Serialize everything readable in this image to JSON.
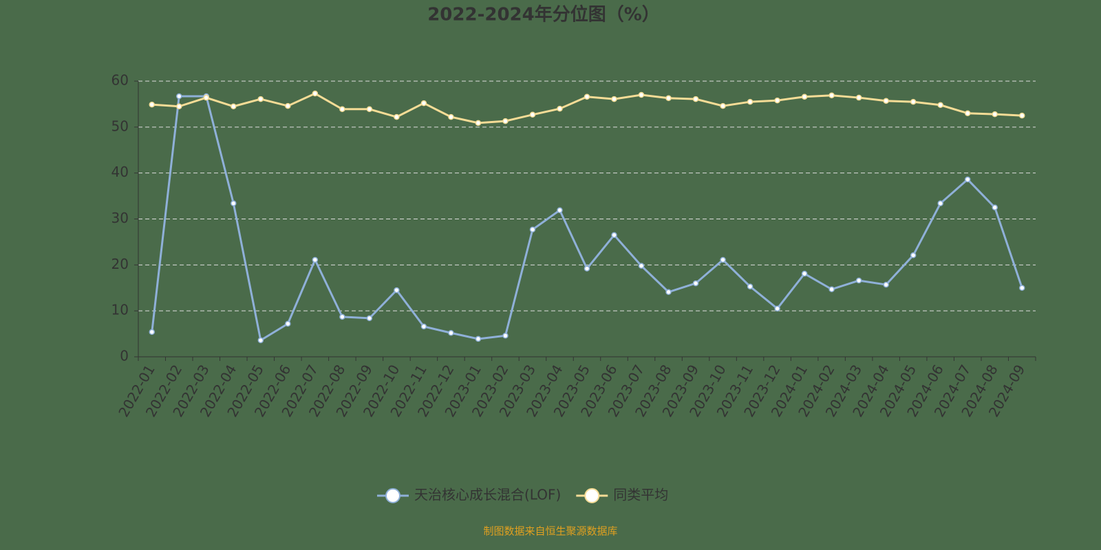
{
  "chart_data": {
    "type": "line",
    "title": "2022-2024年分位图（%）",
    "categories": [
      "2022-01",
      "2022-02",
      "2022-03",
      "2022-04",
      "2022-05",
      "2022-06",
      "2022-07",
      "2022-08",
      "2022-09",
      "2022-10",
      "2022-11",
      "2022-12",
      "2023-01",
      "2023-02",
      "2023-03",
      "2023-04",
      "2023-05",
      "2023-06",
      "2023-07",
      "2023-08",
      "2023-09",
      "2023-10",
      "2023-11",
      "2023-12",
      "2024-01",
      "2024-02",
      "2024-03",
      "2024-04",
      "2024-05",
      "2024-06",
      "2024-07",
      "2024-08",
      "2024-09"
    ],
    "series": [
      {
        "name": "天治核心成长混合(LOF)",
        "color": "#8fb0d8",
        "values": [
          5.4,
          56.7,
          56.7,
          33.4,
          3.6,
          7.2,
          21.1,
          8.7,
          8.4,
          14.5,
          6.6,
          5.2,
          3.9,
          4.6,
          27.7,
          31.9,
          19.2,
          26.5,
          19.8,
          14.1,
          16.0,
          21.1,
          15.3,
          10.5,
          18.1,
          14.7,
          16.6,
          15.7,
          22.1,
          33.4,
          38.6,
          32.5,
          15.0
        ]
      },
      {
        "name": "同类平均",
        "color": "#f5dc96",
        "values": [
          54.9,
          54.5,
          56.4,
          54.5,
          56.1,
          54.6,
          57.3,
          53.9,
          53.9,
          52.2,
          55.2,
          52.2,
          50.9,
          51.3,
          52.7,
          54.0,
          56.6,
          56.1,
          57.0,
          56.3,
          56.1,
          54.6,
          55.5,
          55.8,
          56.6,
          56.9,
          56.4,
          55.7,
          55.5,
          54.8,
          53.0,
          52.8,
          52.5
        ]
      }
    ],
    "ylim": [
      0,
      60
    ],
    "yticks": [
      0,
      10,
      20,
      30,
      40,
      50,
      60
    ],
    "grid": true,
    "footnote": "制图数据来自恒生聚源数据库"
  }
}
